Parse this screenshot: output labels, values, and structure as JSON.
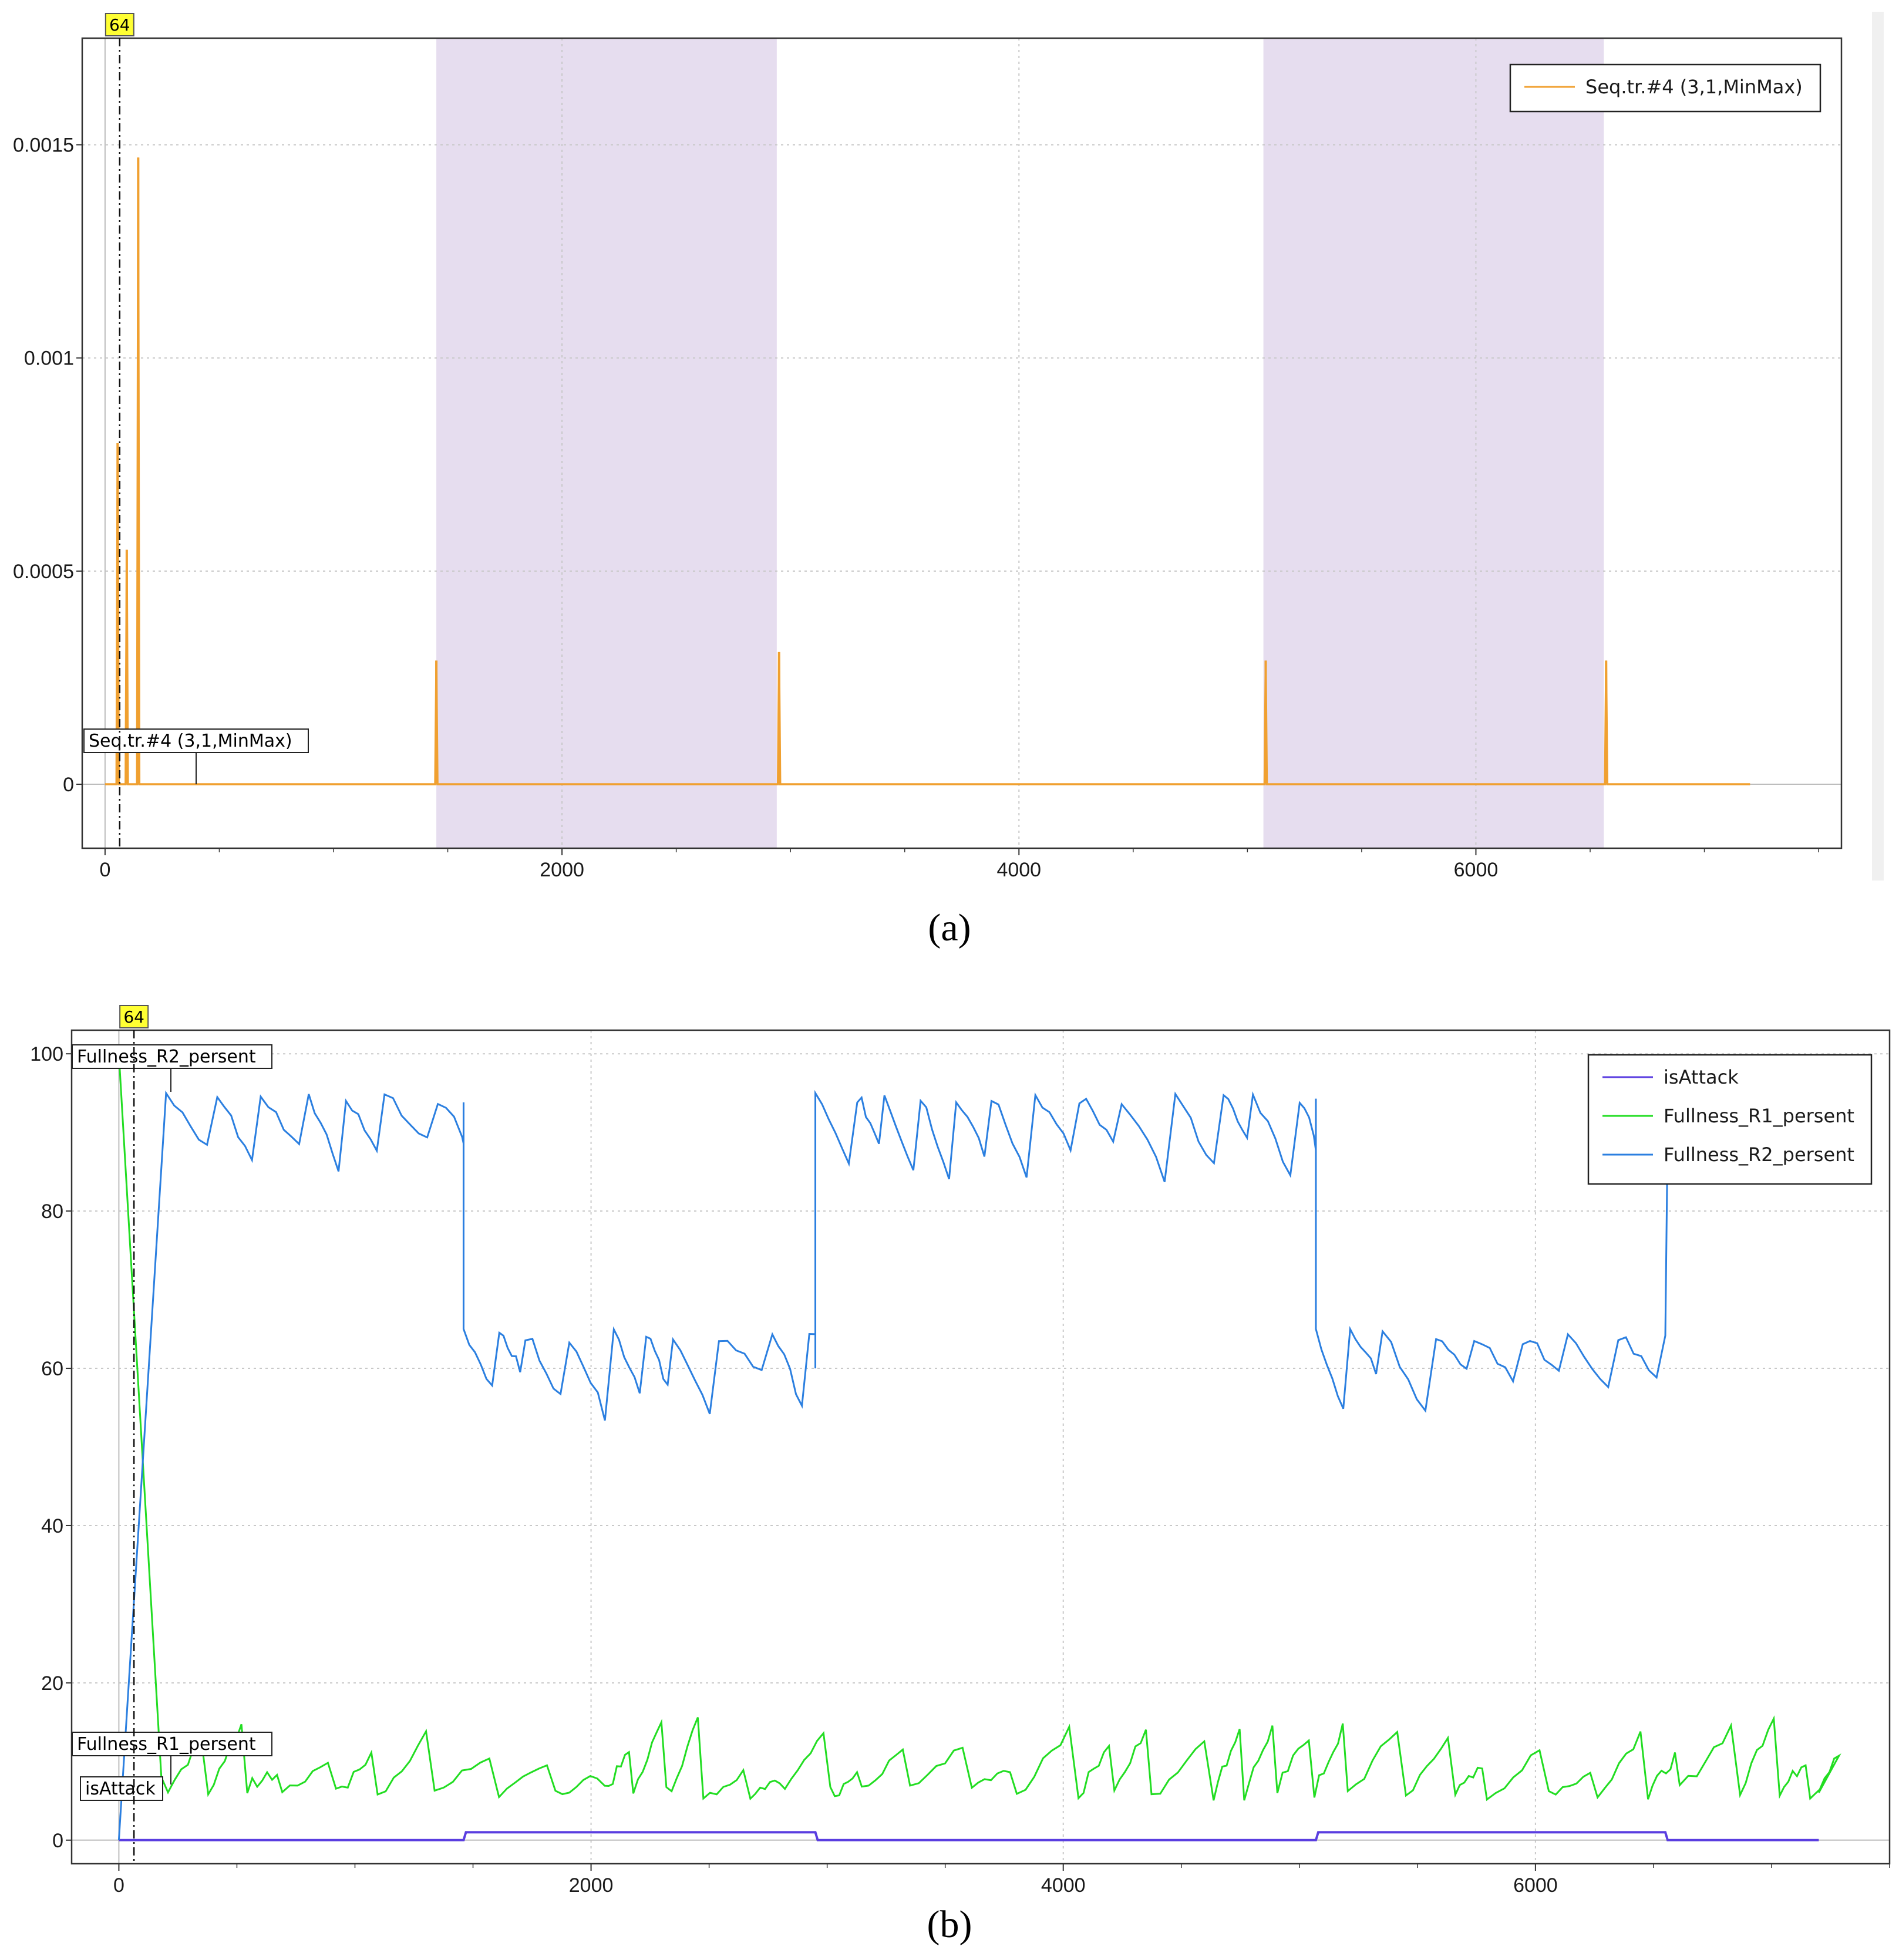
{
  "chart_data": [
    {
      "panel": "a",
      "type": "line",
      "caption": "(a)",
      "xlim": [
        -100,
        7600
      ],
      "ylim": [
        -0.00015,
        0.00175
      ],
      "xticks": [
        0,
        2000,
        4000,
        6000
      ],
      "yticks": [
        0,
        0.0005,
        0.001,
        0.0015
      ],
      "ytick_labels": [
        "0",
        "0.0005",
        "0.001",
        "0.0015"
      ],
      "grid": true,
      "legend_position": "top-right",
      "cursor": {
        "x": 64,
        "label": "64"
      },
      "shaded_regions": [
        [
          1450,
          2940
        ],
        [
          5070,
          6560
        ]
      ],
      "shade_color": "#e6ddef",
      "series": [
        {
          "name": "Seq.tr.#4 (3,1,MinMax)",
          "color": "#f0a030",
          "tag_label": "Seq.tr.#4 (3,1,MinMax)",
          "x_end": 7200,
          "spikes": [
            {
              "x": 55,
              "y": 0.0008
            },
            {
              "x": 95,
              "y": 0.00055
            },
            {
              "x": 145,
              "y": 0.00147
            },
            {
              "x": 1450,
              "y": 0.00029
            },
            {
              "x": 2950,
              "y": 0.00031
            },
            {
              "x": 5080,
              "y": 0.00029
            },
            {
              "x": 6570,
              "y": 0.00029
            }
          ]
        }
      ]
    },
    {
      "panel": "b",
      "type": "line",
      "caption": "(b)",
      "xlim": [
        -200,
        7500
      ],
      "ylim": [
        -3,
        103
      ],
      "xticks": [
        0,
        2000,
        4000,
        6000
      ],
      "yticks": [
        0,
        20,
        40,
        60,
        80,
        100
      ],
      "ytick_labels": [
        "0",
        "20",
        "40",
        "60",
        "80",
        "100"
      ],
      "grid": true,
      "legend_position": "top-right",
      "cursor": {
        "x": 64,
        "label": "64"
      },
      "series": [
        {
          "name": "isAttack",
          "color": "#5a3ee0",
          "tag_label": "isAttack",
          "x": [
            0,
            1460,
            1470,
            2950,
            2960,
            5070,
            5080,
            6550,
            6560,
            7200
          ],
          "y": [
            0,
            0,
            1,
            1,
            0,
            0,
            1,
            1,
            0,
            0
          ]
        },
        {
          "name": "Fullness_R1_persent",
          "color": "#22dd22",
          "tag_label": "Fullness_R1_persent",
          "x_range": [
            0,
            7200
          ],
          "y_range_approx": [
            5,
            17
          ],
          "initial_drop": [
            100,
            8
          ],
          "sawtooth_low": 5,
          "sawtooth_high": 16.5,
          "sawtooth_period": 200
        },
        {
          "name": "Fullness_R2_persent",
          "color": "#2b7fe0",
          "tag_label": "Fullness_R2_persent",
          "x_range": [
            0,
            6550
          ],
          "initial_rise": [
            0,
            95
          ],
          "segments": [
            {
              "x_start": 200,
              "x_end": 1460,
              "low": 84,
              "high": 95
            },
            {
              "x_start": 1460,
              "x_end": 2950,
              "low": 54,
              "high": 65
            },
            {
              "x_start": 2950,
              "x_end": 5070,
              "low": 84,
              "high": 95
            },
            {
              "x_start": 5070,
              "x_end": 6550,
              "low": 54,
              "high": 65
            }
          ],
          "final_value": 90
        }
      ]
    }
  ]
}
